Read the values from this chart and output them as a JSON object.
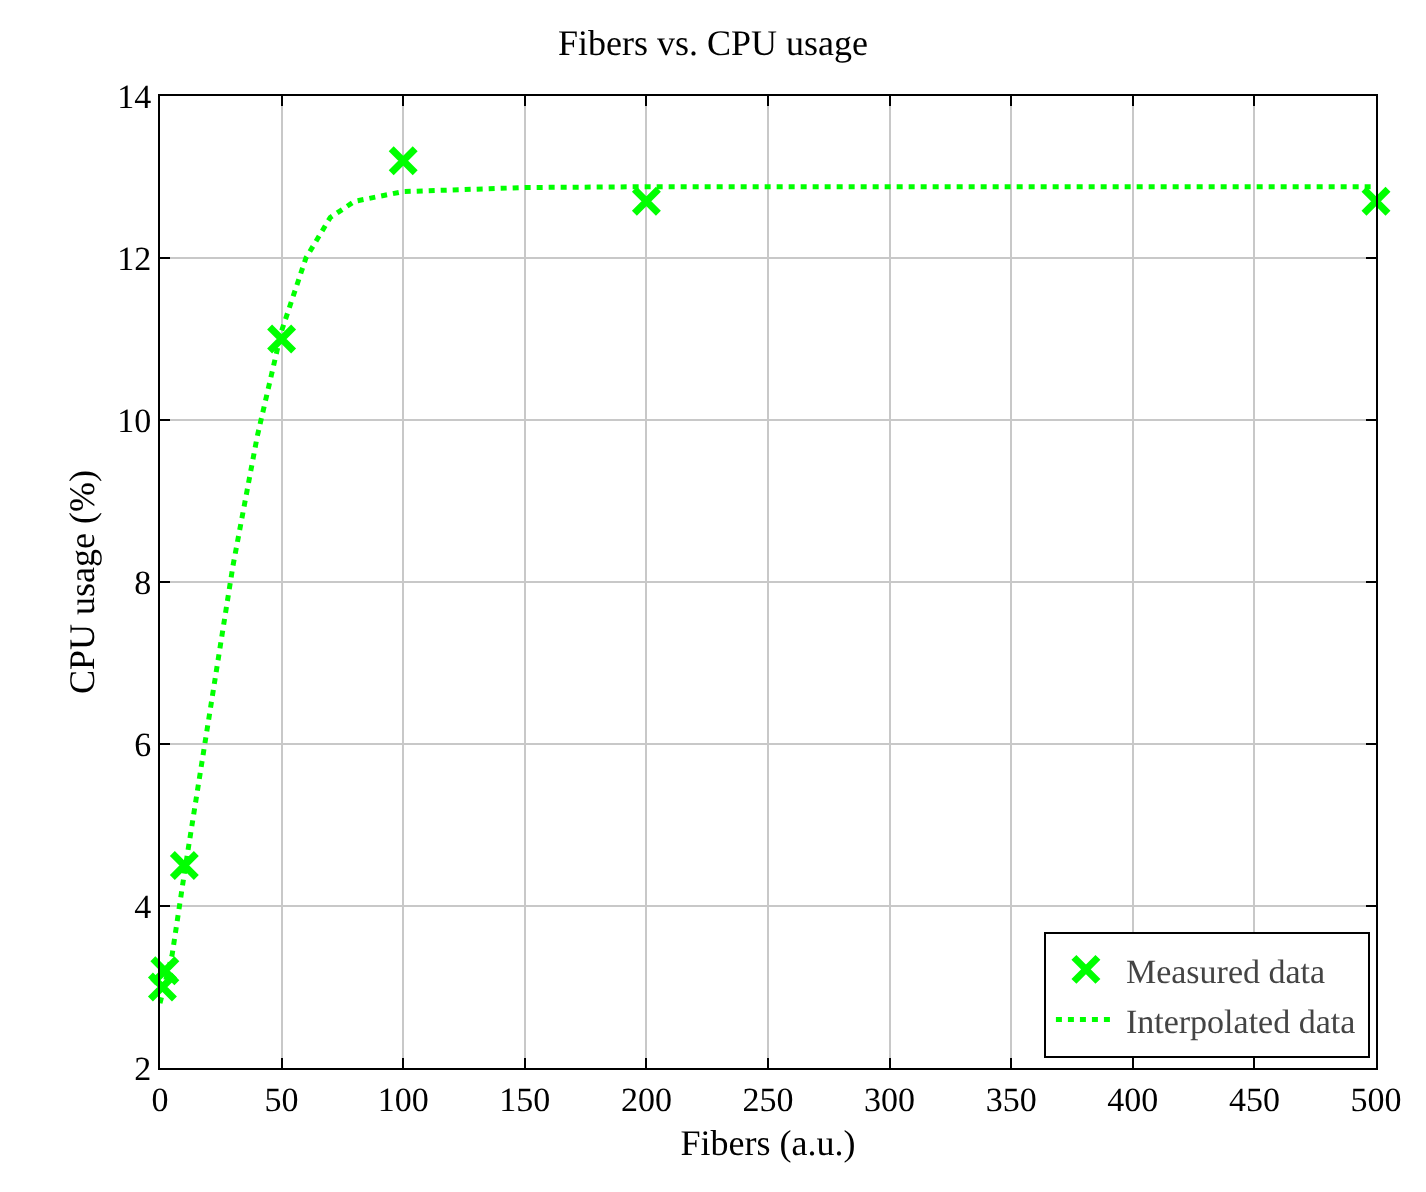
{
  "chart_data": {
    "type": "scatter",
    "title": "Fibers vs. CPU usage",
    "xlabel": "Fibers (a.u.)",
    "ylabel": "CPU usage (%)",
    "xlim": [
      0,
      500
    ],
    "xticks": [
      0,
      50,
      100,
      150,
      200,
      250,
      300,
      350,
      400,
      450,
      500
    ],
    "ylim": [
      2,
      14
    ],
    "yticks": [
      2,
      4,
      6,
      8,
      10,
      12,
      14
    ],
    "grid": true,
    "legend": "bottom right",
    "series": [
      {
        "name": "Measured data",
        "type": "scatter",
        "color": "#00ff00",
        "marker": "cross",
        "x": [
          1,
          2,
          10,
          50,
          100,
          200,
          500
        ],
        "values": [
          3.0,
          3.2,
          4.5,
          11.0,
          13.2,
          12.7,
          12.7
        ]
      },
      {
        "name": "Interpolated data",
        "type": "line",
        "color": "#00ff00",
        "marker": "none",
        "line_style": "dotted",
        "x": [
          0,
          5,
          10,
          20,
          30,
          40,
          50,
          60,
          70,
          80,
          100,
          150,
          200,
          300,
          500
        ],
        "values": [
          2.8,
          3.4,
          4.4,
          6.3,
          8.2,
          9.8,
          11.1,
          12.0,
          12.5,
          12.7,
          12.82,
          12.87,
          12.88,
          12.88,
          12.88
        ]
      }
    ]
  }
}
